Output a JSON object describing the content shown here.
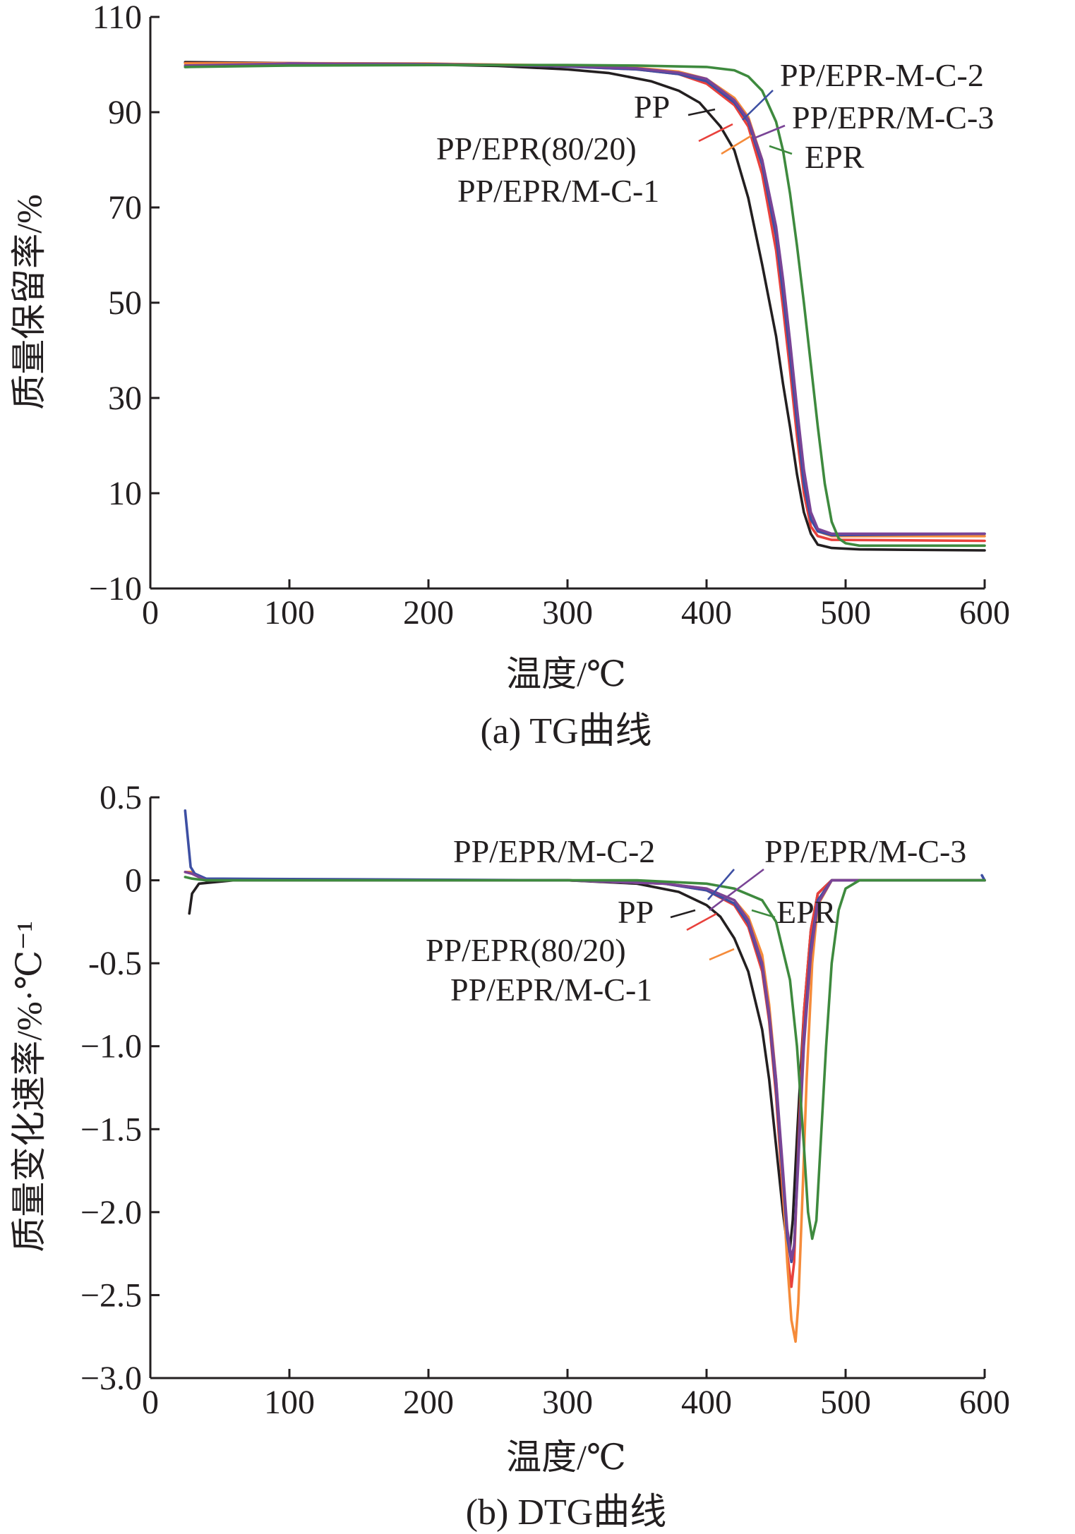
{
  "chart_data": [
    {
      "type": "line",
      "caption": "(a) TG曲线",
      "xlabel": "温度/℃",
      "ylabel": "质量保留率/%",
      "xlim": [
        0,
        600
      ],
      "ylim": [
        -10,
        110
      ],
      "xticks": [
        0,
        100,
        200,
        300,
        400,
        500,
        600
      ],
      "yticks": [
        -10,
        10,
        30,
        50,
        70,
        90,
        110
      ],
      "ytick_labels": [
        "−10",
        "10",
        "30",
        "50",
        "70",
        "90",
        "110"
      ],
      "grid": false,
      "series": [
        {
          "name": "PP",
          "color": "#231f20",
          "points": [
            [
              25,
              100.5
            ],
            [
              100,
              100.3
            ],
            [
              200,
              100
            ],
            [
              250,
              99.7
            ],
            [
              300,
              99
            ],
            [
              330,
              98.2
            ],
            [
              360,
              96.5
            ],
            [
              380,
              94.5
            ],
            [
              395,
              92
            ],
            [
              410,
              87
            ],
            [
              420,
              82
            ],
            [
              430,
              72
            ],
            [
              440,
              58
            ],
            [
              450,
              43
            ],
            [
              455,
              33
            ],
            [
              460,
              24
            ],
            [
              465,
              14
            ],
            [
              470,
              6
            ],
            [
              475,
              1.5
            ],
            [
              480,
              -0.8
            ],
            [
              490,
              -1.5
            ],
            [
              510,
              -1.8
            ],
            [
              600,
              -2
            ]
          ]
        },
        {
          "name": "PP/EPR(80/20)",
          "color": "#e8413c",
          "points": [
            [
              25,
              100.3
            ],
            [
              100,
              100.3
            ],
            [
              200,
              100.1
            ],
            [
              250,
              99.9
            ],
            [
              300,
              99.6
            ],
            [
              350,
              99
            ],
            [
              380,
              98
            ],
            [
              400,
              96
            ],
            [
              420,
              91.5
            ],
            [
              430,
              87
            ],
            [
              440,
              77
            ],
            [
              450,
              61
            ],
            [
              455,
              49
            ],
            [
              460,
              36
            ],
            [
              465,
              22
            ],
            [
              470,
              10
            ],
            [
              475,
              3
            ],
            [
              480,
              1
            ],
            [
              490,
              0.2
            ],
            [
              600,
              0
            ]
          ]
        },
        {
          "name": "PP/EPR/M-C-1",
          "color": "#f58b3a",
          "points": [
            [
              25,
              100.2
            ],
            [
              100,
              100.3
            ],
            [
              200,
              100.2
            ],
            [
              250,
              100
            ],
            [
              300,
              99.8
            ],
            [
              350,
              99.3
            ],
            [
              380,
              98.5
            ],
            [
              400,
              97
            ],
            [
              420,
              93
            ],
            [
              430,
              89
            ],
            [
              440,
              80
            ],
            [
              450,
              65
            ],
            [
              455,
              53
            ],
            [
              460,
              40
            ],
            [
              465,
              26
            ],
            [
              470,
              13
            ],
            [
              475,
              5
            ],
            [
              480,
              2
            ],
            [
              490,
              1
            ],
            [
              600,
              1
            ]
          ]
        },
        {
          "name": "PP/EPR-M-C-2",
          "color": "#3d4fa3",
          "points": [
            [
              25,
              99.5
            ],
            [
              100,
              100.2
            ],
            [
              200,
              100.1
            ],
            [
              250,
              99.9
            ],
            [
              300,
              99.6
            ],
            [
              350,
              99
            ],
            [
              380,
              98
            ],
            [
              400,
              96.5
            ],
            [
              420,
              92
            ],
            [
              430,
              88
            ],
            [
              440,
              79
            ],
            [
              450,
              64
            ],
            [
              455,
              52
            ],
            [
              460,
              39
            ],
            [
              465,
              25
            ],
            [
              470,
              12
            ],
            [
              475,
              4.5
            ],
            [
              480,
              2
            ],
            [
              490,
              1.2
            ],
            [
              600,
              1.5
            ]
          ]
        },
        {
          "name": "PP/EPR/M-C-3",
          "color": "#7a4496",
          "points": [
            [
              25,
              99.8
            ],
            [
              100,
              100.2
            ],
            [
              200,
              100.1
            ],
            [
              250,
              99.9
            ],
            [
              300,
              99.7
            ],
            [
              350,
              99.2
            ],
            [
              380,
              98.3
            ],
            [
              400,
              97
            ],
            [
              420,
              92.5
            ],
            [
              430,
              88.5
            ],
            [
              440,
              80
            ],
            [
              450,
              66
            ],
            [
              455,
              55
            ],
            [
              460,
              42
            ],
            [
              465,
              28
            ],
            [
              470,
              15
            ],
            [
              475,
              6
            ],
            [
              480,
              2.5
            ],
            [
              490,
              1.5
            ],
            [
              600,
              1.5
            ]
          ]
        },
        {
          "name": "EPR",
          "color": "#3e8a3e",
          "points": [
            [
              25,
              99.5
            ],
            [
              100,
              99.8
            ],
            [
              200,
              99.9
            ],
            [
              300,
              99.9
            ],
            [
              350,
              99.8
            ],
            [
              400,
              99.5
            ],
            [
              420,
              98.8
            ],
            [
              430,
              97.5
            ],
            [
              440,
              94.5
            ],
            [
              450,
              88
            ],
            [
              455,
              82
            ],
            [
              460,
              73
            ],
            [
              465,
              62
            ],
            [
              470,
              50
            ],
            [
              475,
              37
            ],
            [
              480,
              24
            ],
            [
              485,
              12
            ],
            [
              490,
              4
            ],
            [
              495,
              0.5
            ],
            [
              500,
              -0.5
            ],
            [
              510,
              -1
            ],
            [
              600,
              -1
            ]
          ]
        }
      ]
    },
    {
      "type": "line",
      "caption": "(b) DTG曲线",
      "xlabel": "温度/℃",
      "ylabel": "质量变化速率/%·℃⁻¹",
      "xlim": [
        0,
        600
      ],
      "ylim": [
        -3.0,
        0.5
      ],
      "xticks": [
        0,
        100,
        200,
        300,
        400,
        500,
        600
      ],
      "yticks": [
        -3.0,
        -2.5,
        -2.0,
        -1.5,
        -1.0,
        -0.5,
        0,
        0.5
      ],
      "ytick_labels": [
        "−3.0",
        "−2.5",
        "−2.0",
        "−1.5",
        "−1.0",
        "-0.5",
        "0",
        "0.5"
      ],
      "grid": false,
      "series": [
        {
          "name": "PP",
          "color": "#231f20",
          "points": [
            [
              28,
              -0.2
            ],
            [
              30,
              -0.08
            ],
            [
              35,
              -0.02
            ],
            [
              60,
              0
            ],
            [
              300,
              0
            ],
            [
              350,
              -0.02
            ],
            [
              380,
              -0.07
            ],
            [
              400,
              -0.15
            ],
            [
              410,
              -0.22
            ],
            [
              420,
              -0.35
            ],
            [
              430,
              -0.55
            ],
            [
              440,
              -0.9
            ],
            [
              445,
              -1.2
            ],
            [
              450,
              -1.6
            ],
            [
              455,
              -2.0
            ],
            [
              458,
              -2.2
            ],
            [
              460,
              -2.22
            ],
            [
              462,
              -2.05
            ],
            [
              465,
              -1.55
            ],
            [
              470,
              -0.8
            ],
            [
              475,
              -0.3
            ],
            [
              480,
              -0.08
            ],
            [
              490,
              0
            ],
            [
              600,
              0
            ]
          ]
        },
        {
          "name": "PP/EPR(80/20)",
          "color": "#e8413c",
          "points": [
            [
              25,
              0.05
            ],
            [
              30,
              0.04
            ],
            [
              40,
              0
            ],
            [
              300,
              0
            ],
            [
              370,
              -0.02
            ],
            [
              400,
              -0.06
            ],
            [
              420,
              -0.15
            ],
            [
              430,
              -0.28
            ],
            [
              440,
              -0.55
            ],
            [
              445,
              -0.85
            ],
            [
              450,
              -1.3
            ],
            [
              455,
              -1.9
            ],
            [
              458,
              -2.25
            ],
            [
              461,
              -2.45
            ],
            [
              463,
              -2.3
            ],
            [
              466,
              -1.6
            ],
            [
              470,
              -0.8
            ],
            [
              475,
              -0.3
            ],
            [
              480,
              -0.08
            ],
            [
              490,
              0
            ],
            [
              600,
              0
            ]
          ]
        },
        {
          "name": "PP/EPR/M-C-1",
          "color": "#f58b3a",
          "points": [
            [
              25,
              0.05
            ],
            [
              30,
              0.05
            ],
            [
              40,
              0
            ],
            [
              300,
              0
            ],
            [
              370,
              -0.02
            ],
            [
              400,
              -0.05
            ],
            [
              420,
              -0.12
            ],
            [
              430,
              -0.22
            ],
            [
              440,
              -0.45
            ],
            [
              445,
              -0.75
            ],
            [
              450,
              -1.2
            ],
            [
              455,
              -1.85
            ],
            [
              458,
              -2.3
            ],
            [
              461,
              -2.65
            ],
            [
              464,
              -2.78
            ],
            [
              466,
              -2.55
            ],
            [
              469,
              -1.9
            ],
            [
              472,
              -1.2
            ],
            [
              476,
              -0.5
            ],
            [
              480,
              -0.15
            ],
            [
              490,
              0
            ],
            [
              600,
              0
            ]
          ]
        },
        {
          "name": "PP/EPR/M-C-2",
          "color": "#3d4fa3",
          "points": [
            [
              25,
              0.42
            ],
            [
              27,
              0.25
            ],
            [
              29,
              0.08
            ],
            [
              32,
              0.04
            ],
            [
              40,
              0.01
            ],
            [
              300,
              0
            ],
            [
              370,
              -0.02
            ],
            [
              400,
              -0.06
            ],
            [
              420,
              -0.14
            ],
            [
              430,
              -0.26
            ],
            [
              440,
              -0.52
            ],
            [
              445,
              -0.82
            ],
            [
              450,
              -1.25
            ],
            [
              455,
              -1.8
            ],
            [
              458,
              -2.15
            ],
            [
              461,
              -2.3
            ],
            [
              463,
              -2.2
            ],
            [
              466,
              -1.65
            ],
            [
              470,
              -0.95
            ],
            [
              475,
              -0.4
            ],
            [
              480,
              -0.12
            ],
            [
              490,
              0
            ],
            [
              600,
              0
            ],
            [
              598,
              0.03
            ]
          ]
        },
        {
          "name": "PP/EPR/M-C-3",
          "color": "#7a4496",
          "points": [
            [
              25,
              0.05
            ],
            [
              30,
              0.04
            ],
            [
              40,
              0
            ],
            [
              300,
              0
            ],
            [
              370,
              -0.02
            ],
            [
              400,
              -0.05
            ],
            [
              420,
              -0.12
            ],
            [
              430,
              -0.24
            ],
            [
              440,
              -0.5
            ],
            [
              445,
              -0.8
            ],
            [
              450,
              -1.2
            ],
            [
              455,
              -1.75
            ],
            [
              458,
              -2.1
            ],
            [
              461,
              -2.28
            ],
            [
              463,
              -2.2
            ],
            [
              466,
              -1.7
            ],
            [
              470,
              -1.0
            ],
            [
              475,
              -0.45
            ],
            [
              480,
              -0.14
            ],
            [
              490,
              0
            ],
            [
              600,
              0
            ]
          ]
        },
        {
          "name": "EPR",
          "color": "#3e8a3e",
          "points": [
            [
              25,
              0.02
            ],
            [
              30,
              0.01
            ],
            [
              40,
              0
            ],
            [
              300,
              0
            ],
            [
              350,
              0
            ],
            [
              400,
              -0.02
            ],
            [
              420,
              -0.05
            ],
            [
              440,
              -0.12
            ],
            [
              450,
              -0.25
            ],
            [
              460,
              -0.6
            ],
            [
              465,
              -1.0
            ],
            [
              470,
              -1.6
            ],
            [
              473,
              -2.0
            ],
            [
              476,
              -2.16
            ],
            [
              479,
              -2.05
            ],
            [
              482,
              -1.6
            ],
            [
              486,
              -1.0
            ],
            [
              490,
              -0.5
            ],
            [
              495,
              -0.18
            ],
            [
              500,
              -0.05
            ],
            [
              510,
              0
            ],
            [
              600,
              0
            ]
          ]
        }
      ]
    }
  ]
}
